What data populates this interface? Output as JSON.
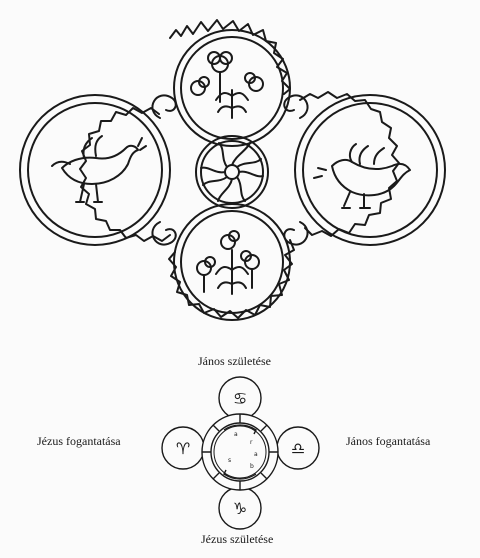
{
  "labels": {
    "top": "János születése",
    "left": "Jézus fogantatása",
    "right": "János fogantatása",
    "bottom": "Jézus születése"
  },
  "symbols": {
    "top": "♋",
    "left": "♈",
    "right": "♎",
    "bottom": "♑"
  },
  "icons": [
    "bird-icon",
    "bird-icon",
    "flower-icon",
    "flower-icon",
    "rosette-icon"
  ],
  "colors": {
    "ink": "#1a1a1a",
    "paper": "#fbfbfb"
  }
}
